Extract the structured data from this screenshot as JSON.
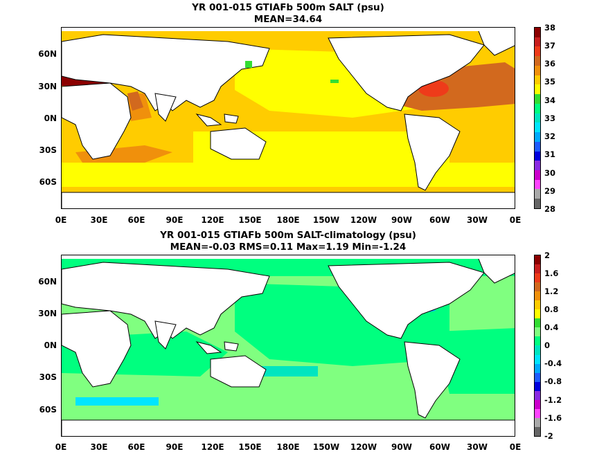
{
  "panels": [
    {
      "title_line1": "YR 001-015 GTIAFb 500m SALT (psu)",
      "title_line2": "MEAN=34.64",
      "lat_labels": [
        "60N",
        "30N",
        "0N",
        "30S",
        "60S"
      ],
      "lon_labels": [
        "0E",
        "30E",
        "60E",
        "90E",
        "120E",
        "150E",
        "180E",
        "150W",
        "120W",
        "90W",
        "60W",
        "30W",
        "0E"
      ],
      "colorbar": {
        "labels": [
          "38",
          "37",
          "36",
          "35",
          "34",
          "33",
          "32",
          "31",
          "30",
          "29",
          "28"
        ],
        "colors": [
          "#8b0000",
          "#c81e1e",
          "#ee3b1a",
          "#d2691e",
          "#f0900c",
          "#ffcc00",
          "#ffff00",
          "#33dd33",
          "#00ff7f",
          "#00e5c0",
          "#00e5ff",
          "#00aaff",
          "#1e5bff",
          "#0000dd",
          "#8a2be2",
          "#cc00cc",
          "#ff44ff",
          "#aaaaaa",
          "#666666"
        ]
      }
    },
    {
      "title_line1": "YR 001-015 GTIAFb 500m SALT-climatology (psu)",
      "title_line2": "MEAN=-0.03   RMS=0.11   Max=1.19   Min=-1.24",
      "lat_labels": [
        "60N",
        "30N",
        "0N",
        "30S",
        "60S"
      ],
      "lon_labels": [
        "0E",
        "30E",
        "60E",
        "90E",
        "120E",
        "150E",
        "180E",
        "150W",
        "120W",
        "90W",
        "60W",
        "30W",
        "0E"
      ],
      "colorbar": {
        "labels": [
          "2",
          "1.6",
          "1.2",
          "0.8",
          "0.4",
          "0",
          "-0.4",
          "-0.8",
          "-1.2",
          "-1.6",
          "-2"
        ],
        "colors": [
          "#8b0000",
          "#c81e1e",
          "#ee3b1a",
          "#d2691e",
          "#f0900c",
          "#ffcc00",
          "#ffff00",
          "#33dd33",
          "#80ff80",
          "#00ff7f",
          "#00e5c0",
          "#00e5ff",
          "#00aaff",
          "#1e5bff",
          "#0000dd",
          "#8a2be2",
          "#cc00cc",
          "#ff44ff",
          "#aaaaaa",
          "#666666"
        ]
      }
    }
  ]
}
